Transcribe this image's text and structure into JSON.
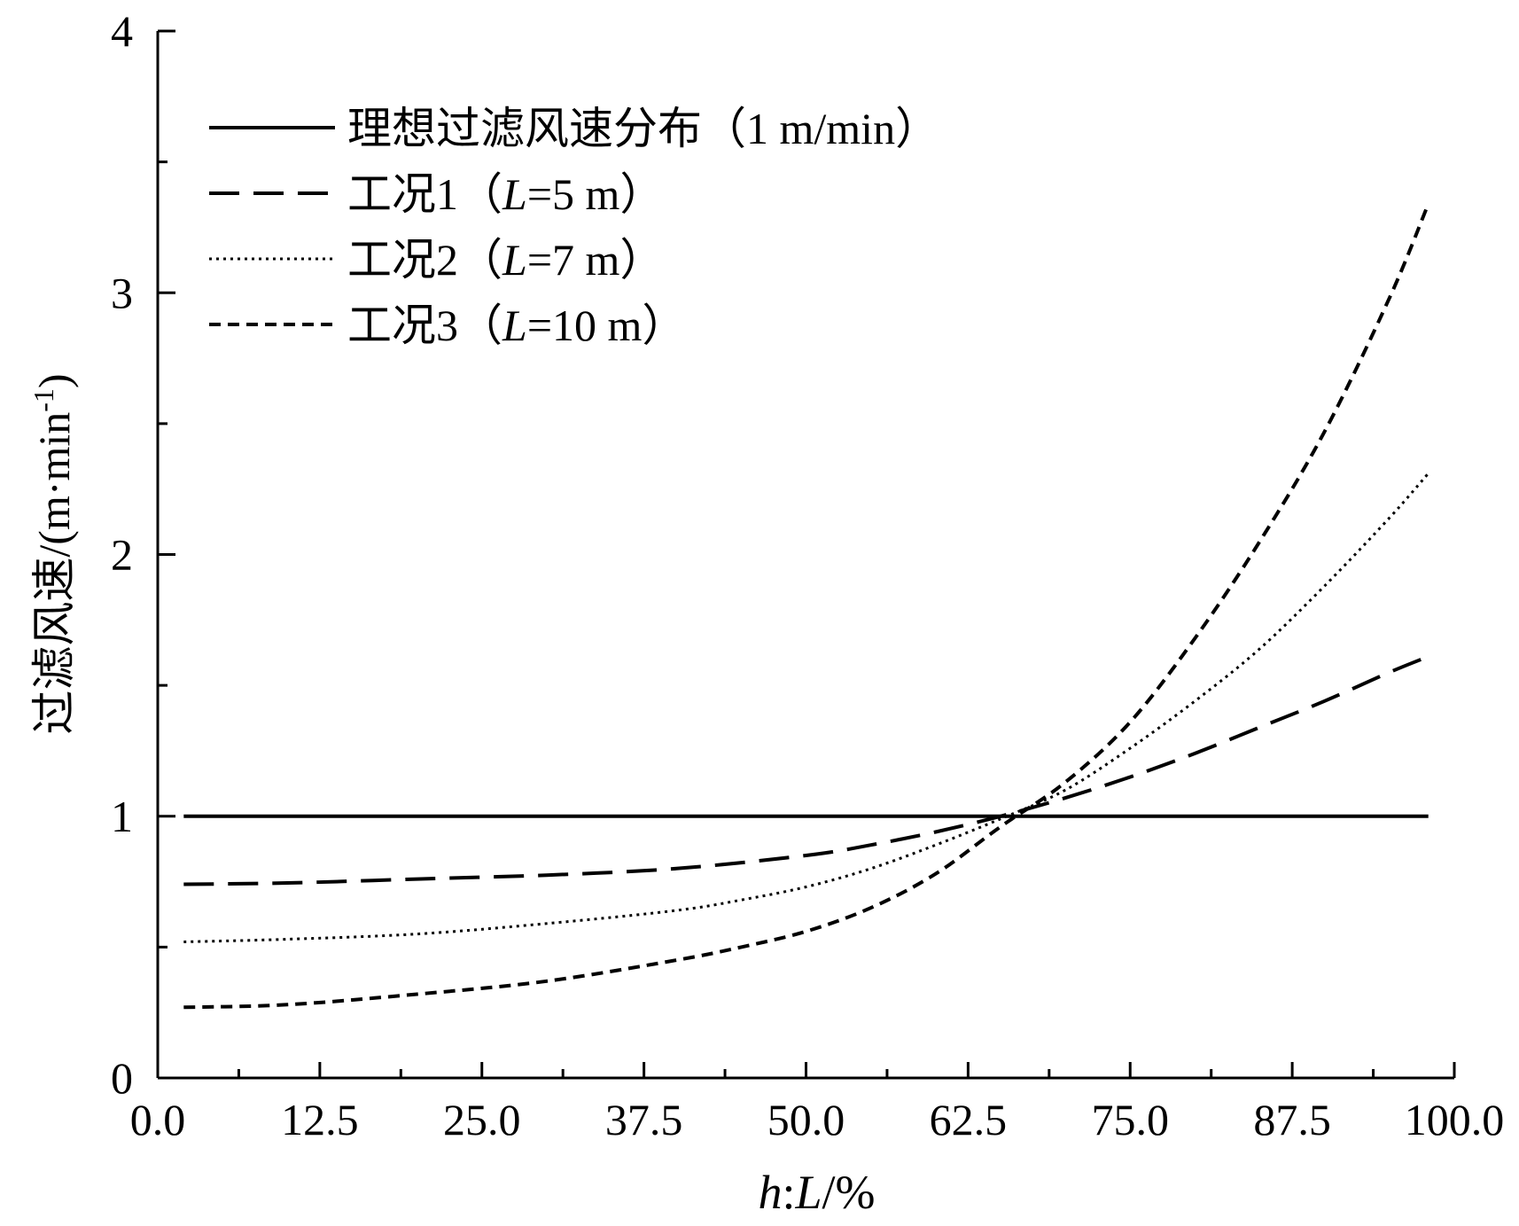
{
  "chart_data": {
    "type": "line",
    "xlabel": "h:L/%",
    "xlabel_parts": {
      "h": "h",
      "colon": ":",
      "L": "L",
      "rest": "/%"
    },
    "ylabel": "过滤风速/(m·min-1)",
    "ylabel_parts": {
      "main": "过滤风速/(m·min",
      "sup": "-1",
      "close": ")"
    },
    "xlim": [
      0,
      100
    ],
    "ylim": [
      0,
      4
    ],
    "xticks": [
      0,
      12.5,
      25,
      37.5,
      50,
      62.5,
      75,
      87.5,
      100
    ],
    "xtick_labels": [
      "0.0",
      "12.5",
      "25.0",
      "37.5",
      "50.0",
      "62.5",
      "75.0",
      "87.5",
      "100.0"
    ],
    "yticks": [
      0,
      1,
      2,
      3,
      4
    ],
    "ytick_labels": [
      "0",
      "1",
      "2",
      "3",
      "4"
    ],
    "grid": false,
    "legend_position": "top-left",
    "series": [
      {
        "name": "理想过滤风速分布（1 m/min）",
        "legend": {
          "pre": "理想过滤风速分布（1 m/min）",
          "italic": "",
          "post": ""
        },
        "style": "solid",
        "x": [
          2,
          98
        ],
        "y": [
          1,
          1
        ]
      },
      {
        "name": "工况1（L=5 m）",
        "legend": {
          "pre": "工况1（",
          "italic": "L",
          "post": "=5 m）"
        },
        "style": "long-dash",
        "x": [
          2,
          10,
          20,
          30,
          40,
          50,
          55,
          60,
          65,
          70,
          75,
          80,
          85,
          90,
          95,
          98
        ],
        "y": [
          0.74,
          0.745,
          0.76,
          0.775,
          0.8,
          0.85,
          0.89,
          0.94,
          1.0,
          1.07,
          1.15,
          1.24,
          1.34,
          1.44,
          1.55,
          1.61
        ]
      },
      {
        "name": "工况2（L=7 m）",
        "legend": {
          "pre": "工况2（",
          "italic": "L",
          "post": "=7 m）"
        },
        "style": "dotted",
        "x": [
          2,
          10,
          20,
          30,
          40,
          45,
          50,
          55,
          60,
          65,
          70,
          75,
          80,
          85,
          90,
          95,
          98
        ],
        "y": [
          0.52,
          0.53,
          0.55,
          0.59,
          0.64,
          0.68,
          0.73,
          0.8,
          0.89,
          0.99,
          1.1,
          1.26,
          1.44,
          1.64,
          1.88,
          2.14,
          2.31
        ]
      },
      {
        "name": "工况3（L=10 m）",
        "legend": {
          "pre": "工况3（",
          "italic": "L",
          "post": "=10 m）"
        },
        "style": "short-dash",
        "x": [
          2,
          10,
          20,
          30,
          40,
          45,
          50,
          55,
          60,
          65,
          70,
          75,
          80,
          85,
          90,
          95,
          98
        ],
        "y": [
          0.27,
          0.28,
          0.32,
          0.37,
          0.45,
          0.5,
          0.56,
          0.65,
          0.78,
          0.96,
          1.13,
          1.36,
          1.68,
          2.05,
          2.47,
          2.98,
          3.34
        ]
      }
    ]
  }
}
